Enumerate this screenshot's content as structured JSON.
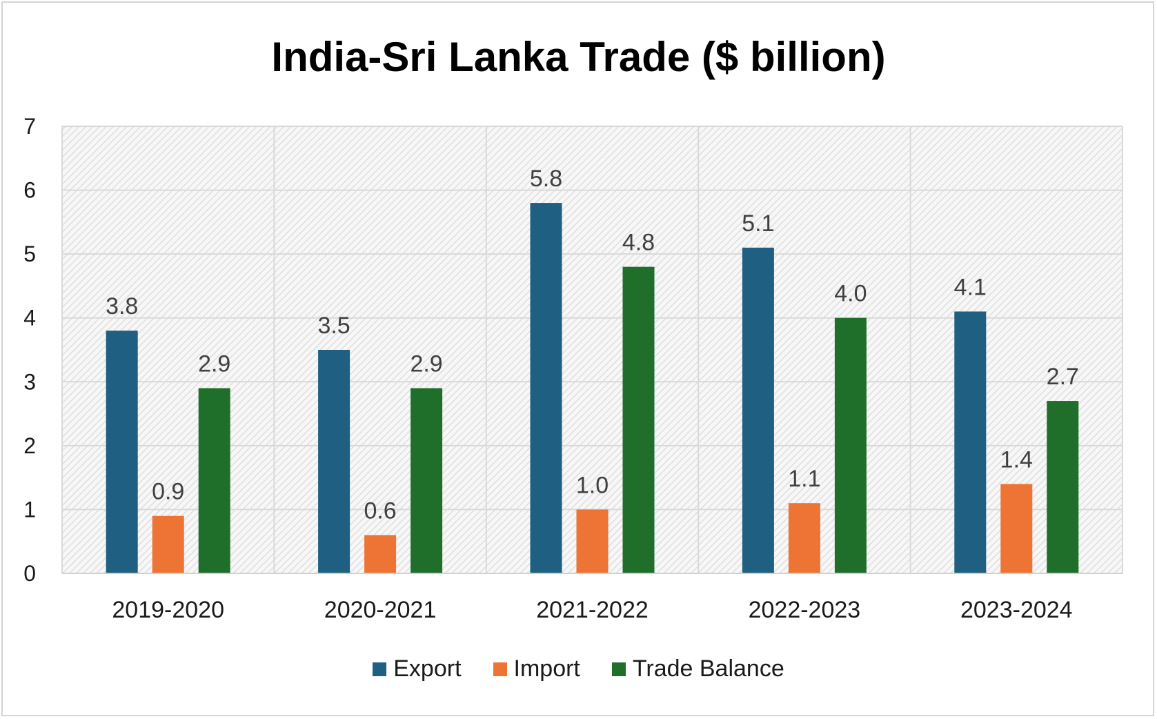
{
  "chart_data": {
    "type": "bar",
    "title": "India-Sri Lanka Trade ($ billion)",
    "categories": [
      "2019-2020",
      "2020-2021",
      "2021-2022",
      "2022-2023",
      "2023-2024"
    ],
    "series": [
      {
        "name": "Export",
        "color": "#1f5f82",
        "values": [
          3.8,
          3.5,
          5.8,
          5.1,
          4.1
        ],
        "labels": [
          "3.8",
          "3.5",
          "5.8",
          "5.1",
          "4.1"
        ]
      },
      {
        "name": "Import",
        "color": "#ed7434",
        "values": [
          0.9,
          0.6,
          1.0,
          1.1,
          1.4
        ],
        "labels": [
          "0.9",
          "0.6",
          "1.0",
          "1.1",
          "1.4"
        ]
      },
      {
        "name": "Trade Balance",
        "color": "#1f6f2b",
        "values": [
          2.9,
          2.9,
          4.8,
          4.0,
          2.7
        ],
        "labels": [
          "2.9",
          "2.9",
          "4.8",
          "4.0",
          "2.7"
        ]
      }
    ],
    "ylim": [
      0,
      7
    ],
    "yticks": [
      "0",
      "1",
      "2",
      "3",
      "4",
      "5",
      "6",
      "7"
    ],
    "grid": true,
    "legend_position": "bottom"
  }
}
